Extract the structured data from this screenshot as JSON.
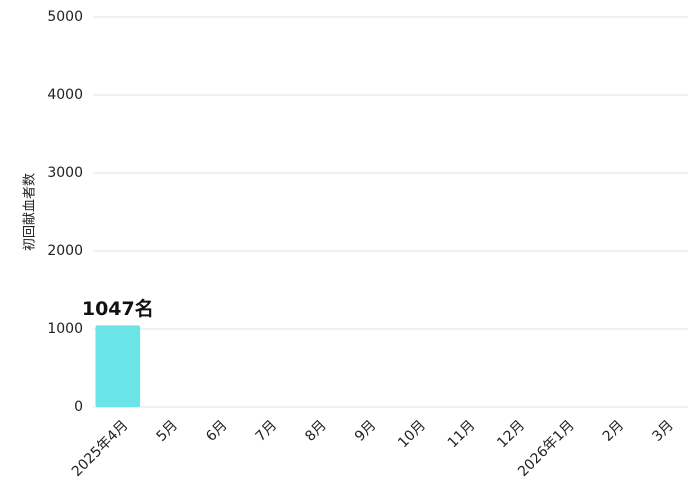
{
  "chart_data": {
    "type": "bar",
    "y_label": "初回献血者数",
    "categories": [
      "2025年4月",
      "5月",
      "6月",
      "7月",
      "8月",
      "9月",
      "10月",
      "11月",
      "12月",
      "2026年1月",
      "2月",
      "3月"
    ],
    "values": [
      1047,
      null,
      null,
      null,
      null,
      null,
      null,
      null,
      null,
      null,
      null,
      null
    ],
    "value_labels": [
      "1047名",
      null,
      null,
      null,
      null,
      null,
      null,
      null,
      null,
      null,
      null,
      null
    ],
    "color": "#6ae4e6",
    "ylim": [
      0,
      5000
    ],
    "yticks": [
      0,
      1000,
      2000,
      3000,
      4000,
      5000
    ],
    "grid": true
  }
}
